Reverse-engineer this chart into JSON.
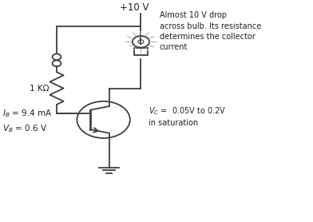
{
  "bg_color": "#ffffff",
  "line_color": "#404040",
  "light_line_color": "#bbbbbb",
  "text_color": "#222222",
  "title_text": "+10 V",
  "annotation1": "Almost 10 V drop\nacross bulb. Its resistance\ndetermines the collector\ncurrent",
  "annotation2": "V_C =  0.05V to 0.2V\nin saturation",
  "label_ib": "I_B = 9.4 mA",
  "label_vb": "V_B = 0.6 V",
  "label_r": "1 KΩ",
  "figsize": [
    3.92,
    2.78
  ],
  "dpi": 100
}
